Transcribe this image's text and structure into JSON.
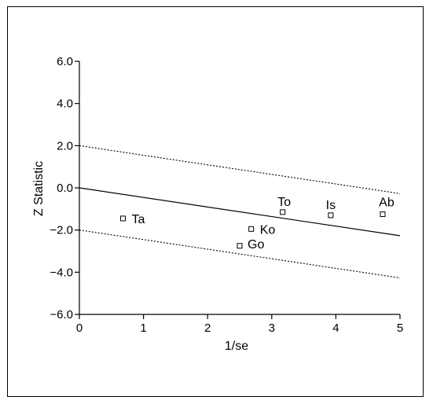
{
  "chart_data": {
    "type": "scatter",
    "title": "",
    "xlabel": "1/se",
    "ylabel": "Z Statistic",
    "xlim": [
      0,
      5
    ],
    "ylim": [
      -6,
      6
    ],
    "x_ticks": [
      0,
      1,
      2,
      3,
      4,
      5
    ],
    "x_tick_labels": [
      "0",
      "1",
      "2",
      "3",
      "4",
      "5"
    ],
    "y_ticks": [
      6,
      4,
      2,
      0,
      -2,
      -4,
      -6
    ],
    "y_tick_labels": [
      "6.0",
      "4.0",
      "2.0",
      "0.0",
      "−2.0",
      "−4.0",
      "−6.0"
    ],
    "grid": false,
    "points": [
      {
        "label": "Ta",
        "x": 0.68,
        "y": -1.45
      },
      {
        "label": "Ko",
        "x": 2.68,
        "y": -1.95
      },
      {
        "label": "Go",
        "x": 2.5,
        "y": -2.75
      },
      {
        "label": "To",
        "x": 3.17,
        "y": -1.15
      },
      {
        "label": "Is",
        "x": 3.92,
        "y": -1.3
      },
      {
        "label": "Ab",
        "x": 4.73,
        "y": -1.25
      }
    ],
    "regression_line": {
      "style": "solid",
      "x": [
        0,
        5
      ],
      "y": [
        0,
        -2.27
      ]
    },
    "confidence_bounds": [
      {
        "style": "dotted",
        "x": [
          0,
          5
        ],
        "y": [
          2,
          -0.27
        ]
      },
      {
        "style": "dotted",
        "x": [
          0,
          5
        ],
        "y": [
          -2,
          -4.27
        ]
      }
    ]
  }
}
